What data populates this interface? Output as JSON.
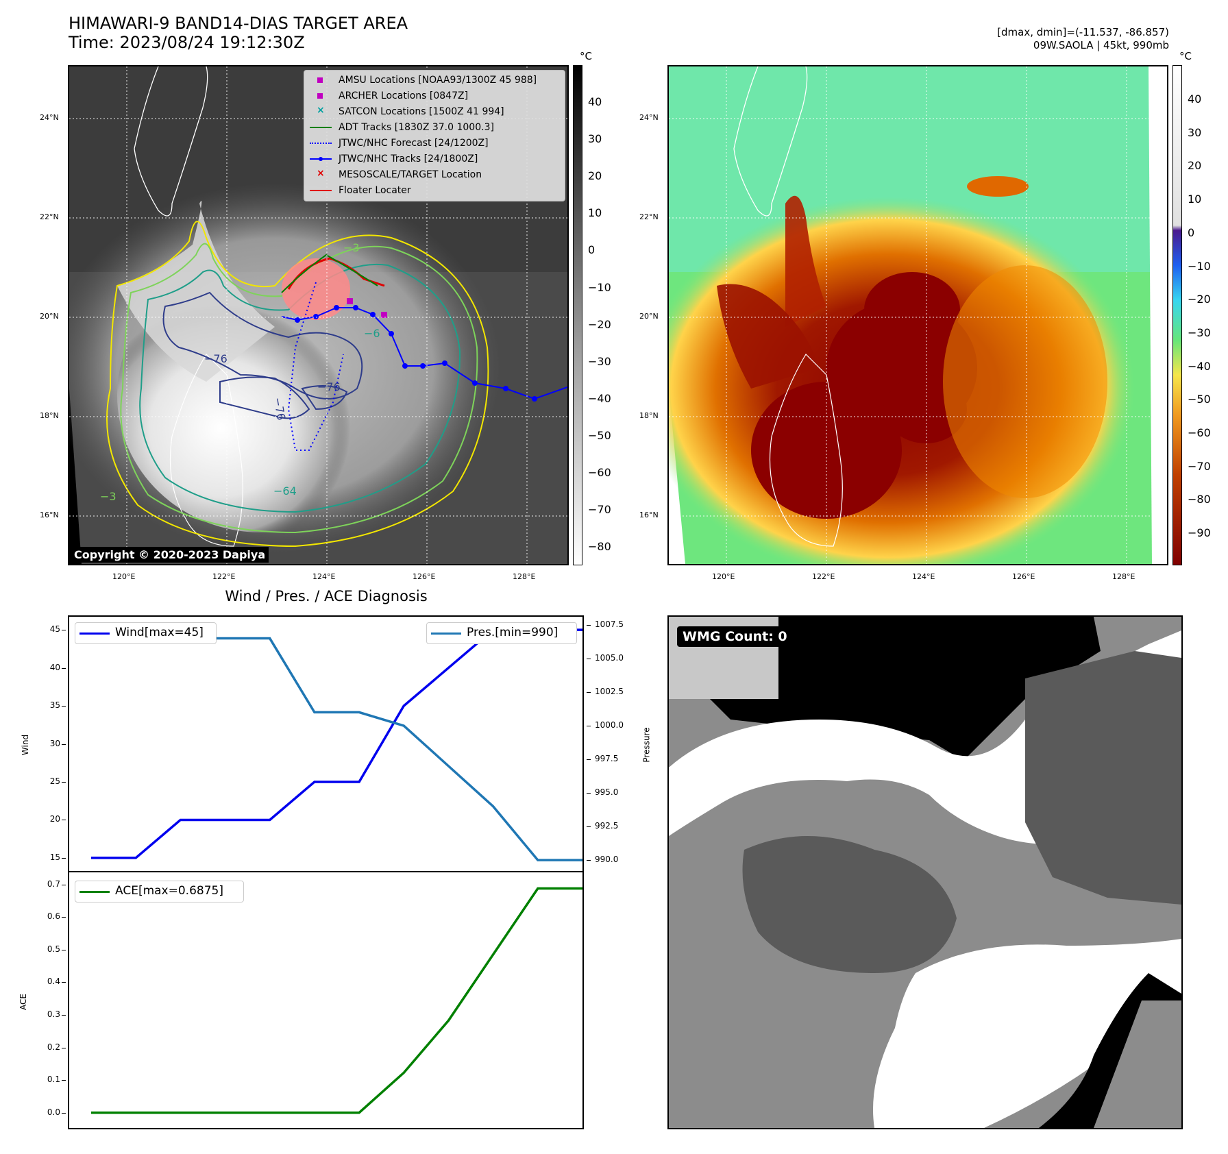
{
  "header": {
    "title_line1": "HIMAWARI-9 BAND14-DIAS TARGET AREA",
    "title_line2": "Time: 2023/08/24 19:12:30Z",
    "info_line1": "[dmax, dmin]=(-11.537, -86.857)",
    "info_line2": "09W.SAOLA | 45kt, 990mb"
  },
  "map_axes": {
    "lat_labels": [
      "24°N",
      "22°N",
      "20°N",
      "18°N",
      "16°N"
    ],
    "lon_labels": [
      "120°E",
      "122°E",
      "124°E",
      "126°E",
      "128°E"
    ]
  },
  "colorbar_left": {
    "unit": "°C",
    "ticks": [
      "40",
      "30",
      "20",
      "10",
      "0",
      "−10",
      "−20",
      "−30",
      "−40",
      "−50",
      "−60",
      "−70",
      "−80"
    ]
  },
  "colorbar_right": {
    "unit": "°C",
    "ticks": [
      "40",
      "30",
      "20",
      "10",
      "0",
      "−10",
      "−20",
      "−30",
      "−40",
      "−50",
      "−60",
      "−70",
      "−80",
      "−90"
    ]
  },
  "map_legend": [
    {
      "label": "AMSU Locations [NOAA93/1300Z 45 988]",
      "marker": "square",
      "color": "#c000c0"
    },
    {
      "label": "ARCHER Locations [0847Z]",
      "marker": "square",
      "color": "#c000c0"
    },
    {
      "label": "SATCON Locations [1500Z 41 994]",
      "marker": "x",
      "color": "#00a0a0"
    },
    {
      "label": "ADT Tracks [1830Z 37.0 1000.3]",
      "marker": "line",
      "color": "#008000"
    },
    {
      "label": "JTWC/NHC Forecast [24/1200Z]",
      "marker": "dotted",
      "color": "#0000ff"
    },
    {
      "label": "JTWC/NHC Tracks [24/1800Z]",
      "marker": "line-dot",
      "color": "#0000ff"
    },
    {
      "label": "MESOSCALE/TARGET Location",
      "marker": "x",
      "color": "#e00000"
    },
    {
      "label": "Floater Locater",
      "marker": "line",
      "color": "#e00000"
    }
  ],
  "contour_labels": [
    "−76",
    "−76",
    "−76",
    "−64",
    "−3",
    "−3",
    "−6"
  ],
  "copyright": "Copyright © 2020-2023 Dapiya",
  "wmg_label": "WMG Count: 0",
  "chart_data": [
    {
      "type": "line",
      "title": "Wind / Pres. / ACE Diagnosis",
      "ylabel": "Wind",
      "y2label": "Pressure",
      "ylim": [
        14,
        46
      ],
      "y2lim": [
        989.6,
        1007.7
      ],
      "yticks": [
        "45",
        "40",
        "35",
        "30",
        "25",
        "20",
        "15"
      ],
      "y2ticks": [
        "1007.5",
        "1005.0",
        "1002.5",
        "1000.0",
        "997.5",
        "995.0",
        "992.5",
        "990.0"
      ],
      "x": [
        0,
        1,
        2,
        3,
        4,
        5,
        6,
        7,
        8,
        9,
        10,
        11
      ],
      "series": [
        {
          "name": "Wind[max=45]",
          "axis": "left",
          "color": "#0000ee",
          "values": [
            15,
            15,
            20,
            20,
            20,
            25,
            25,
            35,
            40,
            45,
            45,
            45
          ]
        },
        {
          "name": "Pres.[min=990]",
          "axis": "right",
          "color": "#1f77b4",
          "values": [
            1007.5,
            1007.5,
            1006.5,
            1006.5,
            1006.5,
            1001.0,
            1001.0,
            1000.0,
            997.0,
            994.0,
            990.0,
            990.0
          ]
        }
      ]
    },
    {
      "type": "line",
      "ylabel": "ACE",
      "ylim": [
        -0.03,
        0.72
      ],
      "yticks": [
        "0.7",
        "0.6",
        "0.5",
        "0.4",
        "0.3",
        "0.2",
        "0.1",
        "0.0"
      ],
      "x": [
        0,
        1,
        2,
        3,
        4,
        5,
        6,
        7,
        8,
        9,
        10,
        11
      ],
      "series": [
        {
          "name": "ACE[max=0.6875]",
          "color": "#008000",
          "values": [
            0,
            0,
            0,
            0,
            0,
            0,
            0,
            0.1225,
            0.2825,
            0.485,
            0.6875,
            0.6875
          ]
        }
      ]
    }
  ]
}
